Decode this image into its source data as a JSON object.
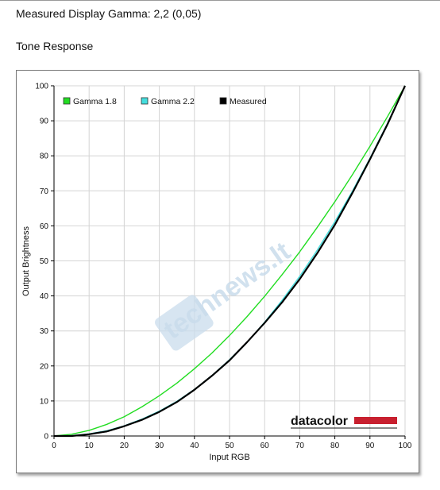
{
  "page": {
    "heading": "Measured Display Gamma: 2,2 (0,05)",
    "subheading": "Tone Response"
  },
  "logo": {
    "text": "datacolor",
    "color": "#c8202f"
  },
  "watermark": {
    "text": "technews.lt",
    "color": "#c9dcec"
  },
  "chart_data": {
    "type": "line",
    "title": "",
    "xlabel": "Input RGB",
    "ylabel": "Output Brightness",
    "xlim": [
      0,
      100
    ],
    "ylim": [
      0,
      100
    ],
    "xticks": [
      0,
      10,
      20,
      30,
      40,
      50,
      60,
      70,
      80,
      90,
      100
    ],
    "yticks": [
      0,
      10,
      20,
      30,
      40,
      50,
      60,
      70,
      80,
      90,
      100
    ],
    "grid": true,
    "legend": "top-left",
    "series": [
      {
        "name": "Gamma 1.8",
        "color": "#22dd22",
        "x": [
          0,
          5,
          10,
          15,
          20,
          25,
          30,
          35,
          40,
          45,
          50,
          55,
          60,
          65,
          70,
          75,
          80,
          85,
          90,
          95,
          100
        ],
        "y": [
          0,
          0.5,
          1.6,
          3.3,
          5.5,
          8.3,
          11.5,
          15.1,
          19.2,
          23.7,
          28.7,
          34.1,
          39.9,
          46.1,
          52.6,
          59.6,
          66.9,
          74.6,
          82.7,
          91.2,
          100
        ]
      },
      {
        "name": "Gamma 2.2",
        "color": "#44dddd",
        "x": [
          0,
          5,
          10,
          15,
          20,
          25,
          30,
          35,
          40,
          45,
          50,
          55,
          60,
          65,
          70,
          75,
          80,
          85,
          90,
          95,
          100
        ],
        "y": [
          0,
          0.1,
          0.6,
          1.5,
          2.9,
          4.8,
          7.1,
          9.9,
          13.3,
          17.3,
          21.8,
          26.8,
          32.5,
          38.8,
          45.6,
          53.1,
          61.2,
          69.9,
          79.3,
          89.3,
          100
        ]
      },
      {
        "name": "Measured",
        "color": "#000000",
        "x": [
          0,
          5,
          10,
          15,
          20,
          25,
          30,
          35,
          40,
          45,
          50,
          55,
          60,
          65,
          70,
          75,
          80,
          85,
          90,
          95,
          100
        ],
        "y": [
          0,
          0,
          0.5,
          1.3,
          2.8,
          4.6,
          6.9,
          9.7,
          13.2,
          17.2,
          21.6,
          26.8,
          32.3,
          38.2,
          44.8,
          52.2,
          60.3,
          69.4,
          79.0,
          89.0,
          100
        ]
      }
    ]
  }
}
